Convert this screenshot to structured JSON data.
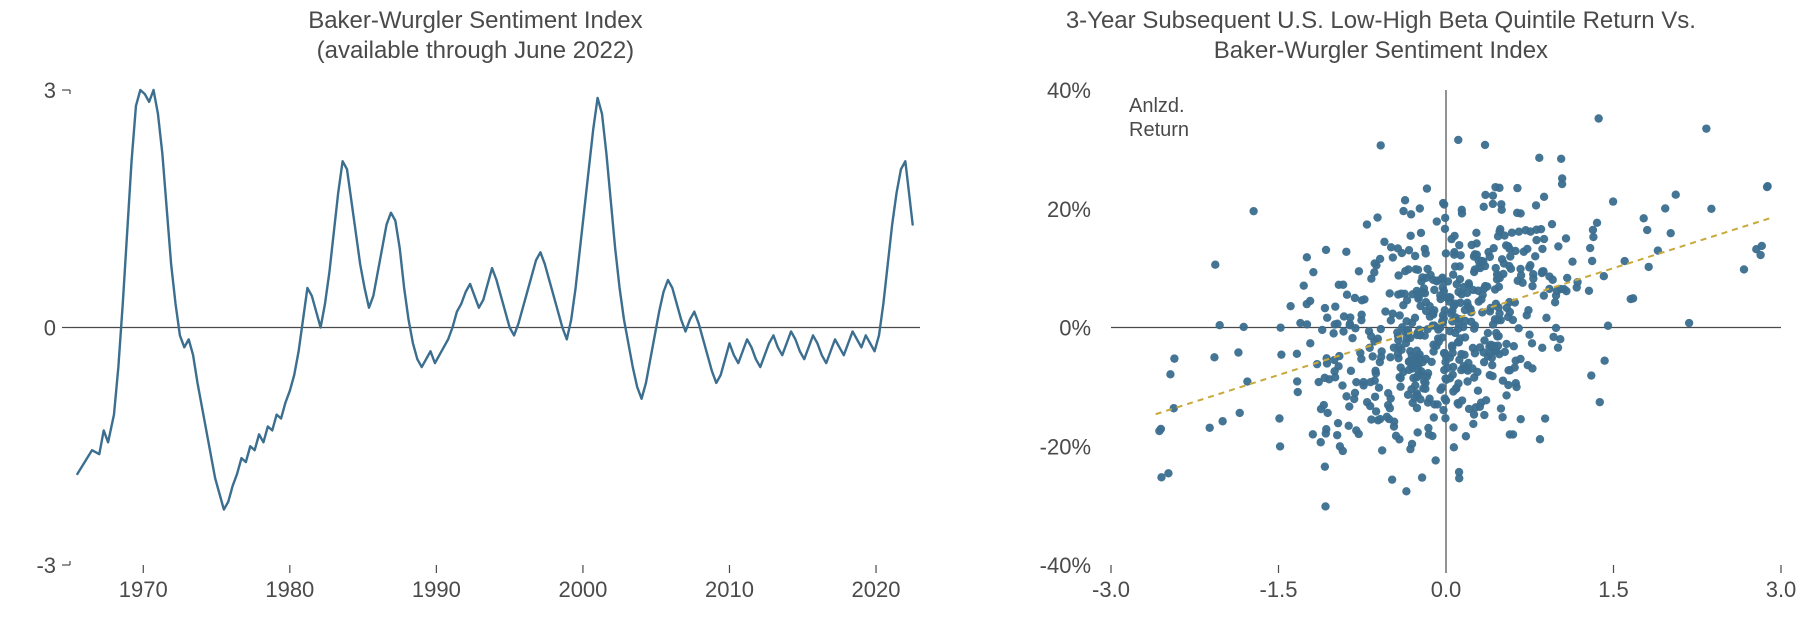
{
  "left_chart": {
    "type": "line",
    "title_line1": "Baker-Wurgler Sentiment Index",
    "title_line2": "(available through June 2022)",
    "title_fontsize": 24,
    "title_color": "#4a4a4a",
    "line_color": "#3b6e8f",
    "line_width": 2.4,
    "axis_color": "#4a4a4a",
    "tick_color": "#4a4a4a",
    "label_fontsize": 22,
    "background_color": "#ffffff",
    "xlim": [
      1965,
      2023
    ],
    "ylim": [
      -3,
      3
    ],
    "xticks": [
      1970,
      1980,
      1990,
      2000,
      2010,
      2020
    ],
    "yticks": [
      -3,
      0,
      3
    ],
    "series": [
      [
        1965.5,
        -1.85
      ],
      [
        1966.0,
        -1.7
      ],
      [
        1966.5,
        -1.55
      ],
      [
        1967.0,
        -1.6
      ],
      [
        1967.3,
        -1.3
      ],
      [
        1967.6,
        -1.45
      ],
      [
        1968.0,
        -1.1
      ],
      [
        1968.3,
        -0.5
      ],
      [
        1968.6,
        0.3
      ],
      [
        1968.9,
        1.2
      ],
      [
        1969.2,
        2.1
      ],
      [
        1969.5,
        2.8
      ],
      [
        1969.8,
        3.0
      ],
      [
        1970.1,
        2.95
      ],
      [
        1970.4,
        2.85
      ],
      [
        1970.7,
        3.0
      ],
      [
        1971.0,
        2.7
      ],
      [
        1971.3,
        2.2
      ],
      [
        1971.6,
        1.5
      ],
      [
        1971.9,
        0.8
      ],
      [
        1972.2,
        0.3
      ],
      [
        1972.5,
        -0.1
      ],
      [
        1972.8,
        -0.25
      ],
      [
        1973.1,
        -0.15
      ],
      [
        1973.4,
        -0.35
      ],
      [
        1973.7,
        -0.7
      ],
      [
        1974.0,
        -1.0
      ],
      [
        1974.3,
        -1.3
      ],
      [
        1974.6,
        -1.6
      ],
      [
        1974.9,
        -1.9
      ],
      [
        1975.2,
        -2.1
      ],
      [
        1975.5,
        -2.3
      ],
      [
        1975.8,
        -2.2
      ],
      [
        1976.1,
        -2.0
      ],
      [
        1976.4,
        -1.85
      ],
      [
        1976.7,
        -1.65
      ],
      [
        1977.0,
        -1.7
      ],
      [
        1977.3,
        -1.5
      ],
      [
        1977.6,
        -1.55
      ],
      [
        1977.9,
        -1.35
      ],
      [
        1978.2,
        -1.45
      ],
      [
        1978.5,
        -1.25
      ],
      [
        1978.8,
        -1.3
      ],
      [
        1979.1,
        -1.1
      ],
      [
        1979.4,
        -1.15
      ],
      [
        1979.7,
        -0.95
      ],
      [
        1980.0,
        -0.8
      ],
      [
        1980.3,
        -0.6
      ],
      [
        1980.6,
        -0.3
      ],
      [
        1980.9,
        0.1
      ],
      [
        1981.2,
        0.5
      ],
      [
        1981.5,
        0.4
      ],
      [
        1981.8,
        0.2
      ],
      [
        1982.1,
        0.0
      ],
      [
        1982.4,
        0.3
      ],
      [
        1982.7,
        0.7
      ],
      [
        1983.0,
        1.2
      ],
      [
        1983.3,
        1.7
      ],
      [
        1983.6,
        2.1
      ],
      [
        1983.9,
        2.0
      ],
      [
        1984.2,
        1.6
      ],
      [
        1984.5,
        1.2
      ],
      [
        1984.8,
        0.8
      ],
      [
        1985.1,
        0.5
      ],
      [
        1985.4,
        0.25
      ],
      [
        1985.7,
        0.4
      ],
      [
        1986.0,
        0.7
      ],
      [
        1986.3,
        1.0
      ],
      [
        1986.6,
        1.3
      ],
      [
        1986.9,
        1.45
      ],
      [
        1987.2,
        1.35
      ],
      [
        1987.5,
        1.0
      ],
      [
        1987.8,
        0.5
      ],
      [
        1988.1,
        0.1
      ],
      [
        1988.4,
        -0.2
      ],
      [
        1988.7,
        -0.4
      ],
      [
        1989.0,
        -0.5
      ],
      [
        1989.3,
        -0.4
      ],
      [
        1989.6,
        -0.3
      ],
      [
        1989.9,
        -0.45
      ],
      [
        1990.2,
        -0.35
      ],
      [
        1990.5,
        -0.25
      ],
      [
        1990.8,
        -0.15
      ],
      [
        1991.1,
        0.0
      ],
      [
        1991.4,
        0.2
      ],
      [
        1991.7,
        0.3
      ],
      [
        1992.0,
        0.45
      ],
      [
        1992.3,
        0.55
      ],
      [
        1992.6,
        0.4
      ],
      [
        1992.9,
        0.25
      ],
      [
        1993.2,
        0.35
      ],
      [
        1993.5,
        0.55
      ],
      [
        1993.8,
        0.75
      ],
      [
        1994.1,
        0.6
      ],
      [
        1994.4,
        0.4
      ],
      [
        1994.7,
        0.2
      ],
      [
        1995.0,
        0.0
      ],
      [
        1995.3,
        -0.1
      ],
      [
        1995.6,
        0.05
      ],
      [
        1995.9,
        0.25
      ],
      [
        1996.2,
        0.45
      ],
      [
        1996.5,
        0.65
      ],
      [
        1996.8,
        0.85
      ],
      [
        1997.1,
        0.95
      ],
      [
        1997.4,
        0.8
      ],
      [
        1997.7,
        0.6
      ],
      [
        1998.0,
        0.4
      ],
      [
        1998.3,
        0.2
      ],
      [
        1998.6,
        0.0
      ],
      [
        1998.9,
        -0.15
      ],
      [
        1999.2,
        0.1
      ],
      [
        1999.5,
        0.5
      ],
      [
        1999.8,
        1.0
      ],
      [
        2000.1,
        1.5
      ],
      [
        2000.4,
        2.0
      ],
      [
        2000.7,
        2.5
      ],
      [
        2001.0,
        2.9
      ],
      [
        2001.3,
        2.7
      ],
      [
        2001.6,
        2.2
      ],
      [
        2001.9,
        1.6
      ],
      [
        2002.2,
        1.0
      ],
      [
        2002.5,
        0.5
      ],
      [
        2002.8,
        0.1
      ],
      [
        2003.1,
        -0.2
      ],
      [
        2003.4,
        -0.5
      ],
      [
        2003.7,
        -0.75
      ],
      [
        2004.0,
        -0.9
      ],
      [
        2004.3,
        -0.7
      ],
      [
        2004.6,
        -0.4
      ],
      [
        2004.9,
        -0.1
      ],
      [
        2005.2,
        0.2
      ],
      [
        2005.5,
        0.45
      ],
      [
        2005.8,
        0.6
      ],
      [
        2006.1,
        0.5
      ],
      [
        2006.4,
        0.3
      ],
      [
        2006.7,
        0.1
      ],
      [
        2007.0,
        -0.05
      ],
      [
        2007.3,
        0.1
      ],
      [
        2007.6,
        0.2
      ],
      [
        2007.9,
        0.05
      ],
      [
        2008.2,
        -0.15
      ],
      [
        2008.5,
        -0.35
      ],
      [
        2008.8,
        -0.55
      ],
      [
        2009.1,
        -0.7
      ],
      [
        2009.4,
        -0.6
      ],
      [
        2009.7,
        -0.4
      ],
      [
        2010.0,
        -0.2
      ],
      [
        2010.3,
        -0.35
      ],
      [
        2010.6,
        -0.45
      ],
      [
        2010.9,
        -0.3
      ],
      [
        2011.2,
        -0.15
      ],
      [
        2011.5,
        -0.25
      ],
      [
        2011.8,
        -0.4
      ],
      [
        2012.1,
        -0.5
      ],
      [
        2012.4,
        -0.35
      ],
      [
        2012.7,
        -0.2
      ],
      [
        2013.0,
        -0.1
      ],
      [
        2013.3,
        -0.25
      ],
      [
        2013.6,
        -0.35
      ],
      [
        2013.9,
        -0.2
      ],
      [
        2014.2,
        -0.05
      ],
      [
        2014.5,
        -0.15
      ],
      [
        2014.8,
        -0.3
      ],
      [
        2015.1,
        -0.4
      ],
      [
        2015.4,
        -0.25
      ],
      [
        2015.7,
        -0.1
      ],
      [
        2016.0,
        -0.2
      ],
      [
        2016.3,
        -0.35
      ],
      [
        2016.6,
        -0.45
      ],
      [
        2016.9,
        -0.3
      ],
      [
        2017.2,
        -0.15
      ],
      [
        2017.5,
        -0.25
      ],
      [
        2017.8,
        -0.35
      ],
      [
        2018.1,
        -0.2
      ],
      [
        2018.4,
        -0.05
      ],
      [
        2018.7,
        -0.15
      ],
      [
        2019.0,
        -0.25
      ],
      [
        2019.3,
        -0.1
      ],
      [
        2019.6,
        -0.2
      ],
      [
        2019.9,
        -0.3
      ],
      [
        2020.2,
        -0.1
      ],
      [
        2020.5,
        0.3
      ],
      [
        2020.8,
        0.8
      ],
      [
        2021.1,
        1.3
      ],
      [
        2021.4,
        1.7
      ],
      [
        2021.7,
        2.0
      ],
      [
        2022.0,
        2.1
      ],
      [
        2022.25,
        1.7
      ],
      [
        2022.5,
        1.3
      ]
    ]
  },
  "right_chart": {
    "type": "scatter",
    "title_line1": "3-Year Subsequent U.S. Low-High Beta Quintile Return Vs.",
    "title_line2": "Baker-Wurgler Sentiment Index",
    "title_fontsize": 24,
    "title_color": "#4a4a4a",
    "point_color": "#3b6e8f",
    "point_radius": 4.2,
    "point_opacity": 0.95,
    "trend_color": "#c9a83c",
    "trend_width": 2,
    "trend_dash": "6,5",
    "trend_slope": 6.0,
    "trend_intercept": 1.0,
    "axis_color": "#4a4a4a",
    "label_fontsize": 22,
    "background_color": "#ffffff",
    "xlim": [
      -3.0,
      3.0
    ],
    "ylim": [
      -40,
      40
    ],
    "xticks": [
      -3.0,
      -1.5,
      0.0,
      1.5,
      3.0
    ],
    "yticks": [
      -40,
      -20,
      0,
      20,
      40
    ],
    "ytick_suffix": "%",
    "y_axis_label_line1": "Anlzd.",
    "y_axis_label_line2": "Return",
    "n_points": 620,
    "scatter_seed": 42
  }
}
